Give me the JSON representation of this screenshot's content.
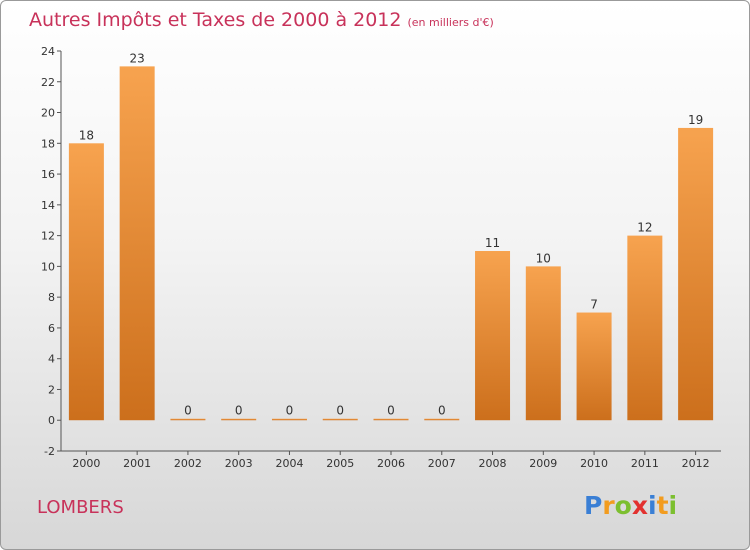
{
  "chart_data": {
    "type": "bar",
    "title": "Autres Impôts et Taxes de 2000 à 2012",
    "unit": "(en milliers d'€)",
    "categories": [
      "2000",
      "2001",
      "2002",
      "2003",
      "2004",
      "2005",
      "2006",
      "2007",
      "2008",
      "2009",
      "2010",
      "2011",
      "2012"
    ],
    "values": [
      18,
      23,
      0,
      0,
      0,
      0,
      0,
      0,
      11,
      10,
      7,
      12,
      19
    ],
    "ylim": [
      -2,
      24
    ],
    "yticks": [
      -2,
      0,
      2,
      4,
      6,
      8,
      10,
      12,
      14,
      16,
      18,
      20,
      22,
      24
    ],
    "grid": false,
    "bar_color_top": "#f7a34f",
    "bar_color_bottom": "#cc6f1c"
  },
  "place_name": "LOMBERS",
  "brand": {
    "letters": [
      "P",
      "r",
      "o",
      "x",
      "i",
      "t",
      "i"
    ],
    "colors": [
      "#3a7fd5",
      "#f29c1f",
      "#7cbf2f",
      "#e2312f",
      "#3a7fd5",
      "#f29c1f",
      "#7cbf2f"
    ]
  }
}
